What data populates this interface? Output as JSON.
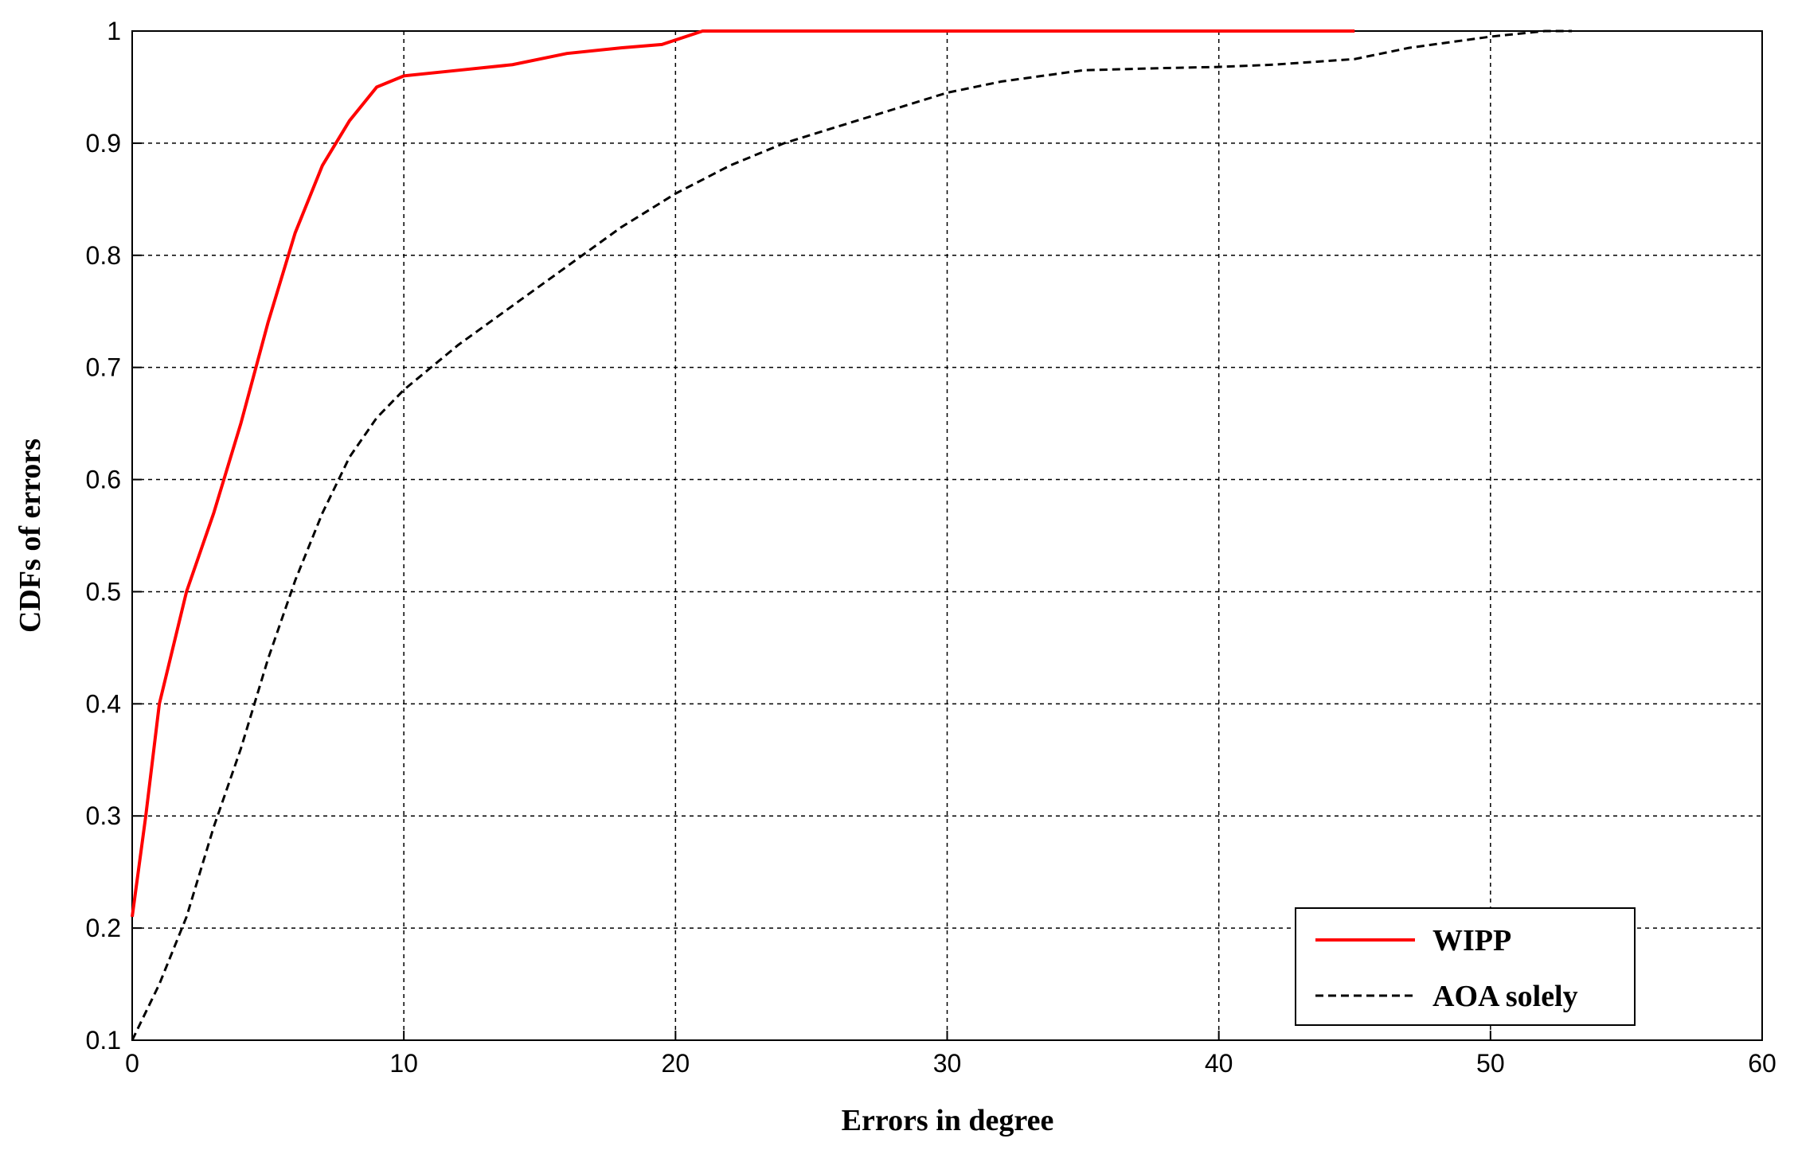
{
  "chart_data": {
    "type": "line",
    "xlabel": "Errors in degree",
    "ylabel": "CDFs of errors",
    "xlim": [
      0,
      60
    ],
    "xticks": [
      0,
      10,
      20,
      30,
      40,
      50,
      60
    ],
    "ylim": [
      0.1,
      1
    ],
    "yticks": [
      0.1,
      0.2,
      0.3,
      0.4,
      0.5,
      0.6,
      0.7,
      0.8,
      0.9,
      1
    ],
    "grid": true,
    "legend": "lower right",
    "series": [
      {
        "name": "WIPP",
        "color": "#ff0000",
        "dash": false,
        "x": [
          0,
          0.5,
          1,
          1.5,
          2,
          3,
          4,
          5,
          6,
          7,
          8,
          9,
          10,
          12,
          14,
          16,
          18,
          19.5,
          21,
          22,
          45
        ],
        "values": [
          0.21,
          0.3,
          0.4,
          0.45,
          0.5,
          0.57,
          0.65,
          0.74,
          0.82,
          0.88,
          0.92,
          0.95,
          0.96,
          0.965,
          0.97,
          0.98,
          0.985,
          0.988,
          1,
          1,
          1
        ]
      },
      {
        "name": "AOA solely",
        "color": "#000000",
        "dash": true,
        "x": [
          0,
          1,
          2,
          3,
          4,
          5,
          6,
          7,
          8,
          9,
          10,
          12,
          14,
          16,
          18,
          20,
          22,
          24,
          26,
          28,
          30,
          32,
          35,
          38,
          40,
          42,
          45,
          47,
          50,
          52,
          53
        ],
        "values": [
          0.1,
          0.15,
          0.21,
          0.29,
          0.36,
          0.44,
          0.51,
          0.57,
          0.62,
          0.655,
          0.68,
          0.72,
          0.755,
          0.79,
          0.825,
          0.855,
          0.88,
          0.9,
          0.915,
          0.93,
          0.945,
          0.955,
          0.965,
          0.967,
          0.968,
          0.97,
          0.975,
          0.985,
          0.995,
          1,
          1
        ]
      }
    ]
  }
}
